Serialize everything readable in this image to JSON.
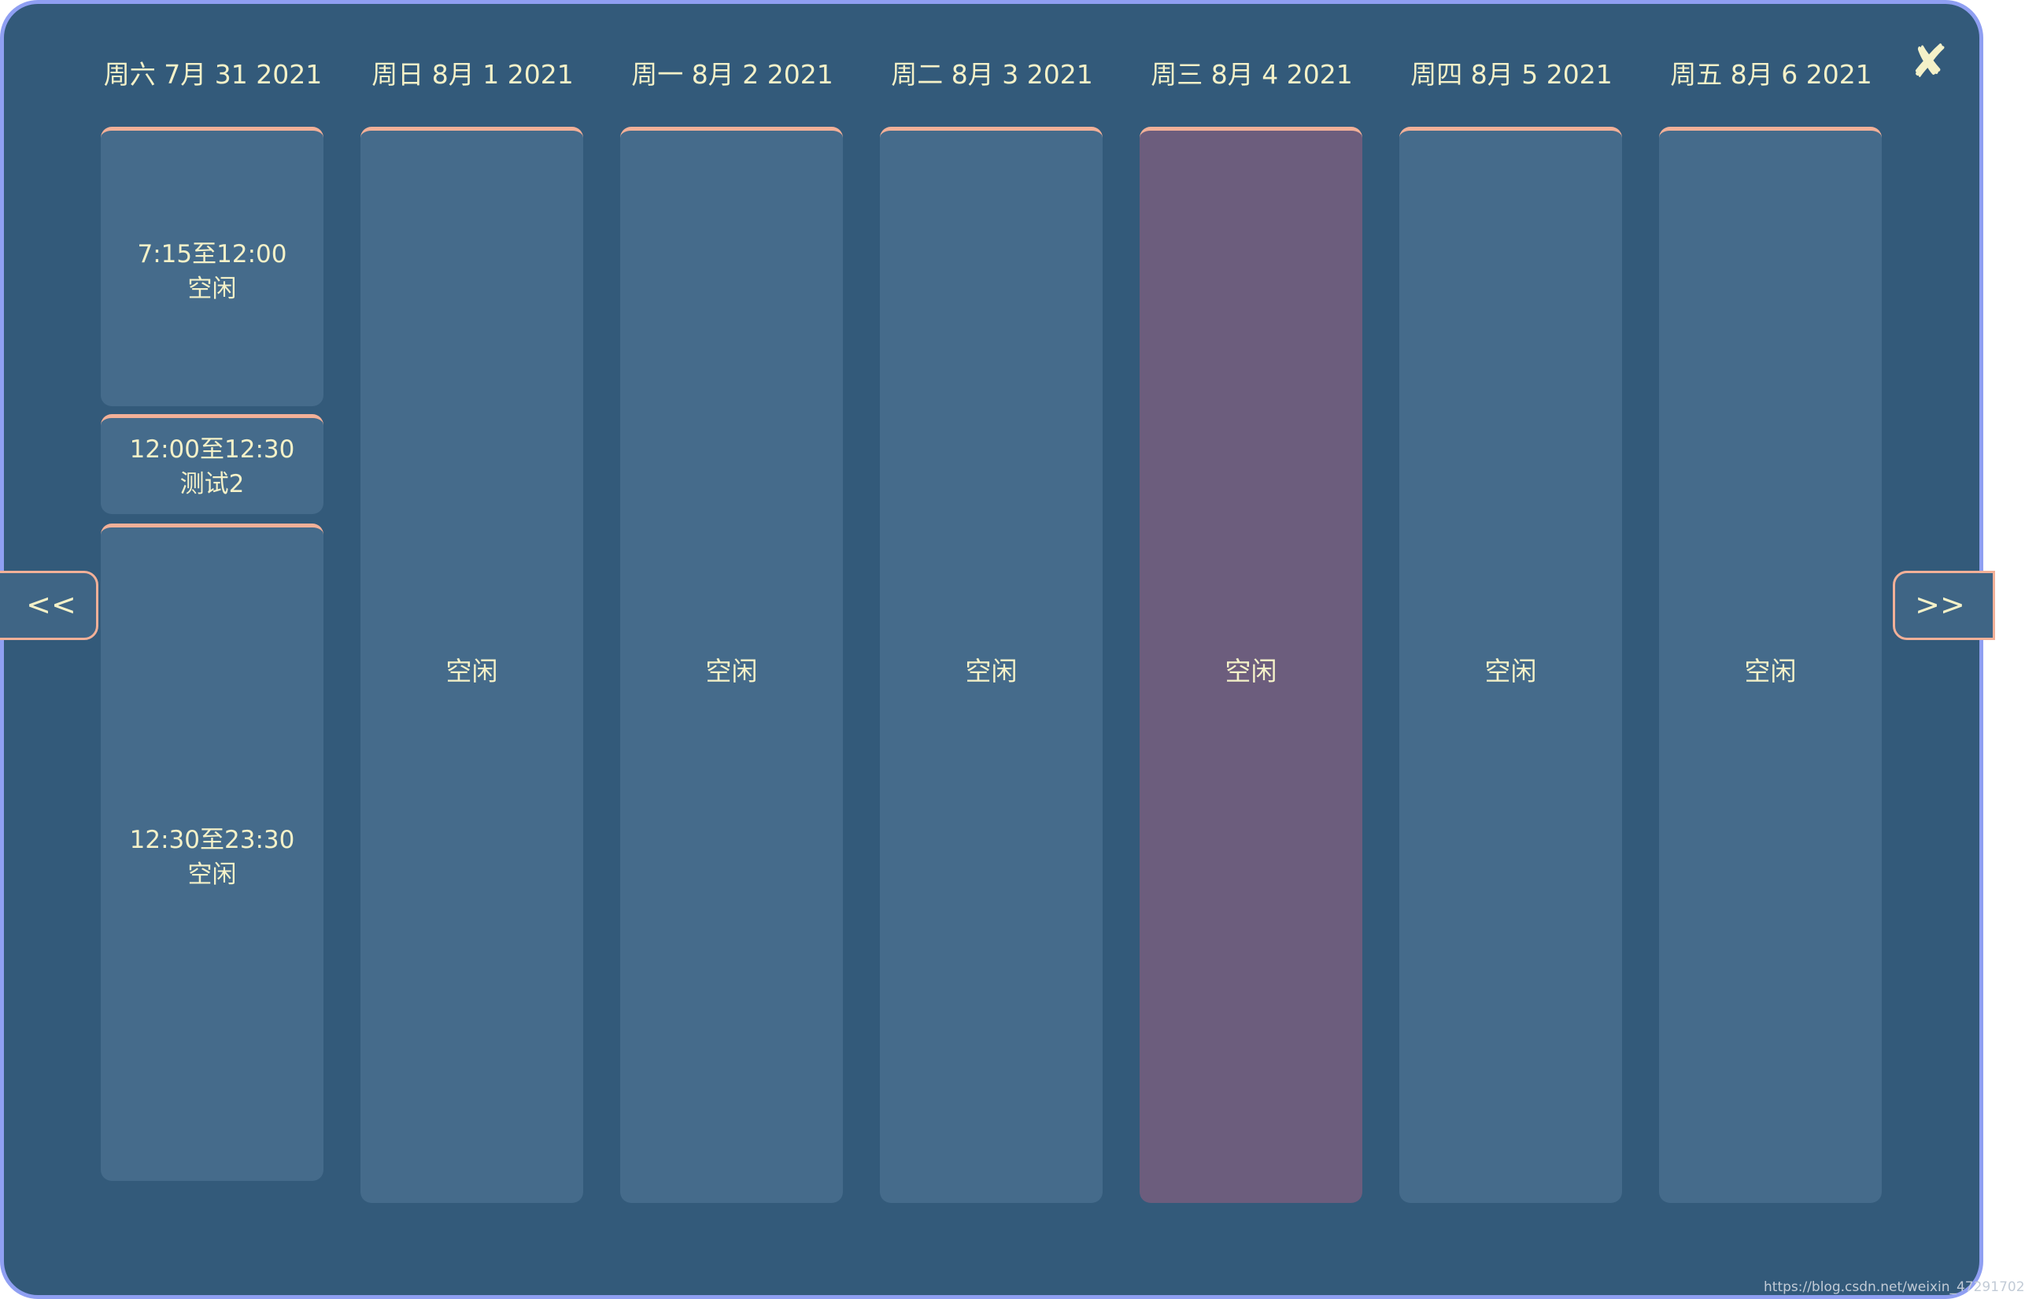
{
  "close_label": "✘",
  "nav": {
    "prev_label": "<<",
    "next_label": ">>"
  },
  "days": [
    {
      "header": "周六 7月 31 2021",
      "slots": [
        {
          "time": "7:15至12:00",
          "status": "空闲"
        },
        {
          "time": "12:00至12:30",
          "status": "测试2"
        },
        {
          "time": "12:30至23:30",
          "status": "空闲"
        }
      ]
    },
    {
      "header": "周日 8月 1 2021",
      "label": "空闲"
    },
    {
      "header": "周一 8月 2 2021",
      "label": "空闲"
    },
    {
      "header": "周二 8月 3 2021",
      "label": "空闲"
    },
    {
      "header": "周三 8月 4 2021",
      "label": "空闲",
      "highlighted": true
    },
    {
      "header": "周四 8月 5 2021",
      "label": "空闲"
    },
    {
      "header": "周五 8月 6 2021",
      "label": "空闲"
    }
  ],
  "colors": {
    "background": "#335a7a",
    "column": "#456b8b",
    "today_column": "#6c5d7d",
    "accent": "#f2b098",
    "text": "#f4f1c8",
    "border": "#8f9ff2"
  },
  "watermark": "https://blog.csdn.net/weixin_47291702"
}
